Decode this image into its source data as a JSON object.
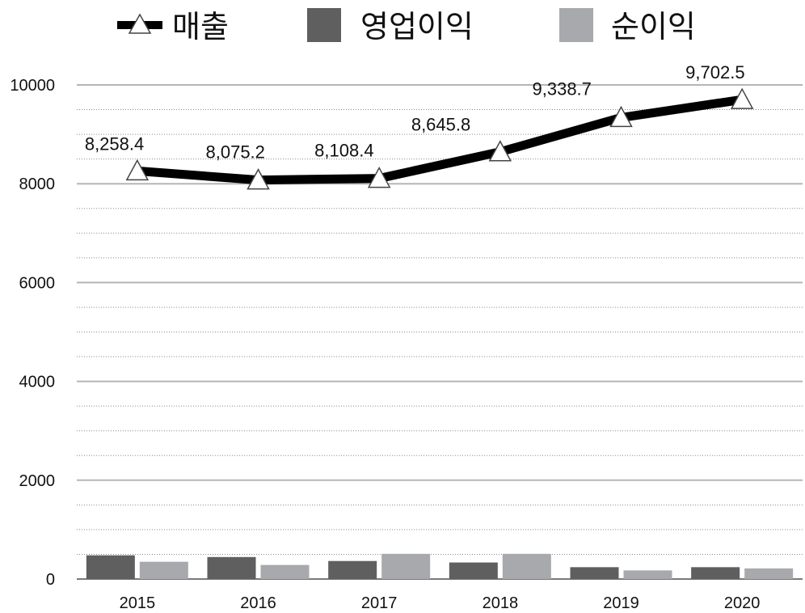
{
  "chart_data": {
    "type": "bar",
    "categories": [
      "2015",
      "2016",
      "2017",
      "2018",
      "2019",
      "2020"
    ],
    "series": [
      {
        "name": "매출",
        "type": "line",
        "values": [
          8258.4,
          8075.2,
          8108.4,
          8645.8,
          9338.7,
          9702.5
        ],
        "data_labels": [
          "8,258.4",
          "8,075.2",
          "8,108.4",
          "8,645.8",
          "9,338.7",
          "9,702.5"
        ],
        "color": "#000000",
        "marker": "triangle"
      },
      {
        "name": "영업이익",
        "type": "bar",
        "values": [
          480,
          445,
          365,
          335,
          240,
          240
        ],
        "color": "#5f5f5f"
      },
      {
        "name": "순이익",
        "type": "bar",
        "values": [
          350,
          285,
          510,
          510,
          175,
          215
        ],
        "color": "#a8a9ad"
      }
    ],
    "y_ticks": [
      "0",
      "2000",
      "4000",
      "6000",
      "8000",
      "10000"
    ],
    "ylim": [
      0,
      10000
    ],
    "grid": {
      "major": true,
      "minor_dotted": true
    },
    "legend": "top-center"
  }
}
